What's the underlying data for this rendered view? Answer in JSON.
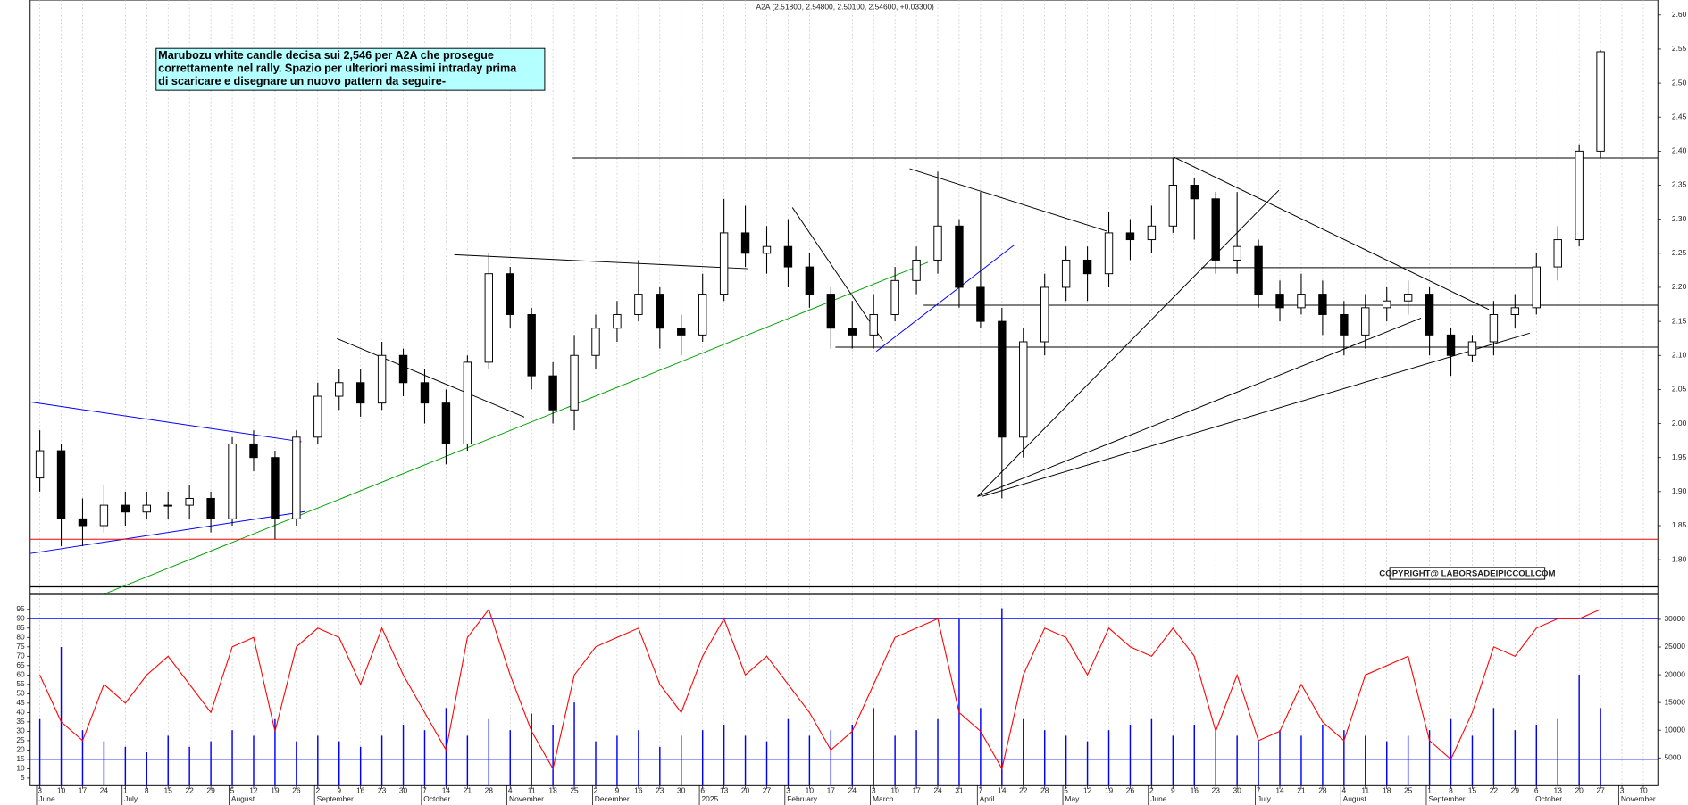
{
  "chart_data": {
    "type": "candlestick",
    "title": "A2A (2.51800, 2.54800, 2.50100, 2.54600, +0.03300)",
    "annotation": [
      "Marubozu white candle decisa sui 2,546 per A2A che prosegue",
      "correttamente nel rally. Spazio per ulteriori massimi intraday prima",
      "di scaricare e disegnare un nuovo pattern da seguire-"
    ],
    "copyright": "COPYRIGHT@ LABORSADEIPICCOLI.COM",
    "categories": [
      "3",
      "10",
      "17",
      "24",
      "1",
      "8",
      "15",
      "22",
      "29",
      "5",
      "12",
      "19",
      "26",
      "2",
      "9",
      "16",
      "23",
      "30",
      "7",
      "14",
      "21",
      "28",
      "4",
      "11",
      "18",
      "25",
      "2",
      "9",
      "16",
      "23",
      "30",
      "6",
      "13",
      "20",
      "27",
      "3",
      "10",
      "17",
      "24",
      "3",
      "10",
      "17",
      "24",
      "31",
      "7",
      "14",
      "22",
      "28",
      "5",
      "12",
      "19",
      "26",
      "2",
      "9",
      "16",
      "23",
      "30",
      "7",
      "14",
      "21",
      "28",
      "4",
      "11",
      "18",
      "25",
      "1",
      "8",
      "15",
      "22",
      "29",
      "6",
      "13",
      "20",
      "27",
      "3",
      "10"
    ],
    "months": [
      "June",
      "July",
      "August",
      "September",
      "October",
      "November",
      "December",
      "2025",
      "February",
      "March",
      "April",
      "May",
      "June",
      "July",
      "August",
      "September",
      "October",
      "November"
    ],
    "open": [
      1.92,
      1.96,
      1.86,
      1.85,
      1.88,
      1.87,
      1.88,
      1.88,
      1.89,
      1.86,
      1.97,
      1.95,
      1.86,
      1.98,
      2.04,
      2.06,
      2.03,
      2.1,
      2.06,
      2.03,
      1.97,
      2.09,
      2.22,
      2.16,
      2.07,
      2.02,
      2.1,
      2.14,
      2.16,
      2.19,
      2.14,
      2.13,
      2.19,
      2.28,
      2.25,
      2.26,
      2.23,
      2.19,
      2.14,
      2.13,
      2.16,
      2.21,
      2.24,
      2.29,
      2.2,
      2.15,
      1.98,
      2.12,
      2.2,
      2.24,
      2.22,
      2.28,
      2.27,
      2.29,
      2.35,
      2.33,
      2.24,
      2.26,
      2.19,
      2.17,
      2.19,
      2.16,
      2.13,
      2.17,
      2.18,
      2.19,
      2.13,
      2.1,
      2.12,
      2.16,
      2.17,
      2.23,
      2.27,
      2.4,
      null,
      null
    ],
    "high": [
      1.99,
      1.97,
      1.89,
      1.91,
      1.9,
      1.9,
      1.9,
      1.91,
      1.9,
      1.98,
      1.99,
      1.96,
      1.99,
      2.06,
      2.08,
      2.08,
      2.12,
      2.11,
      2.08,
      2.05,
      2.1,
      2.25,
      2.23,
      2.17,
      2.09,
      2.13,
      2.16,
      2.18,
      2.24,
      2.2,
      2.16,
      2.22,
      2.33,
      2.32,
      2.29,
      2.3,
      2.25,
      2.2,
      2.18,
      2.19,
      2.23,
      2.26,
      2.37,
      2.3,
      2.34,
      2.17,
      2.14,
      2.22,
      2.26,
      2.26,
      2.31,
      2.3,
      2.32,
      2.39,
      2.36,
      2.34,
      2.34,
      2.27,
      2.21,
      2.22,
      2.21,
      2.18,
      2.19,
      2.2,
      2.21,
      2.2,
      2.14,
      2.13,
      2.18,
      2.19,
      2.25,
      2.29,
      2.41,
      2.548,
      null,
      null
    ],
    "low": [
      1.9,
      1.82,
      1.82,
      1.84,
      1.85,
      1.86,
      1.86,
      1.86,
      1.84,
      1.85,
      1.93,
      1.83,
      1.85,
      1.97,
      2.02,
      2.01,
      2.02,
      2.04,
      2.0,
      1.94,
      1.96,
      2.08,
      2.14,
      2.05,
      2.0,
      1.99,
      2.08,
      2.12,
      2.15,
      2.11,
      2.1,
      2.12,
      2.18,
      2.23,
      2.22,
      2.2,
      2.17,
      2.11,
      2.11,
      2.11,
      2.15,
      2.19,
      2.22,
      2.17,
      2.14,
      1.89,
      1.95,
      2.1,
      2.18,
      2.18,
      2.2,
      2.24,
      2.25,
      2.28,
      2.27,
      2.22,
      2.22,
      2.17,
      2.15,
      2.16,
      2.13,
      2.1,
      2.11,
      2.15,
      2.16,
      2.1,
      2.07,
      2.09,
      2.1,
      2.14,
      2.16,
      2.21,
      2.26,
      2.39,
      null,
      null
    ],
    "close": [
      1.96,
      1.86,
      1.85,
      1.88,
      1.87,
      1.88,
      1.88,
      1.89,
      1.86,
      1.97,
      1.95,
      1.86,
      1.98,
      2.04,
      2.06,
      2.03,
      2.1,
      2.06,
      2.03,
      1.97,
      2.09,
      2.22,
      2.16,
      2.07,
      2.02,
      2.1,
      2.14,
      2.16,
      2.19,
      2.14,
      2.13,
      2.19,
      2.28,
      2.25,
      2.26,
      2.23,
      2.19,
      2.14,
      2.13,
      2.16,
      2.21,
      2.24,
      2.29,
      2.2,
      2.15,
      1.98,
      2.12,
      2.2,
      2.24,
      2.22,
      2.28,
      2.27,
      2.29,
      2.35,
      2.33,
      2.24,
      2.26,
      2.19,
      2.17,
      2.19,
      2.16,
      2.13,
      2.17,
      2.18,
      2.19,
      2.13,
      2.1,
      2.12,
      2.16,
      2.17,
      2.23,
      2.27,
      2.4,
      2.546,
      null,
      null
    ],
    "ylim": [
      1.757,
      2.622
    ],
    "yticks": [
      {
        "value": 1.8,
        "label": "1.80"
      },
      {
        "value": 1.85,
        "label": "1.85"
      },
      {
        "value": 1.9,
        "label": "1.90"
      },
      {
        "value": 1.95,
        "label": "1.95"
      },
      {
        "value": 2.0,
        "label": "2.00"
      },
      {
        "value": 2.05,
        "label": "2.05"
      },
      {
        "value": 2.1,
        "label": "2.10"
      },
      {
        "value": 2.15,
        "label": "2.15"
      },
      {
        "value": 2.2,
        "label": "2.20"
      },
      {
        "value": 2.25,
        "label": "2.25"
      },
      {
        "value": 2.3,
        "label": "2.30"
      },
      {
        "value": 2.35,
        "label": "2.35"
      },
      {
        "value": 2.4,
        "label": "2.40"
      },
      {
        "value": 2.45,
        "label": "2.45"
      },
      {
        "value": 2.5,
        "label": "2.50"
      },
      {
        "value": 2.55,
        "label": "2.55"
      },
      {
        "value": 2.6,
        "label": "2.60"
      }
    ],
    "oscillator": {
      "color": "#ff0000",
      "level_color": "#0000ff",
      "values": [
        60,
        35,
        25,
        55,
        45,
        60,
        70,
        55,
        40,
        75,
        80,
        30,
        75,
        85,
        80,
        55,
        85,
        60,
        40,
        20,
        80,
        95,
        60,
        30,
        10,
        60,
        75,
        80,
        85,
        55,
        40,
        70,
        90,
        60,
        70,
        55,
        40,
        20,
        30,
        55,
        80,
        85,
        90,
        40,
        30,
        10,
        60,
        85,
        80,
        60,
        85,
        75,
        70,
        85,
        70,
        30,
        60,
        25,
        30,
        55,
        35,
        25,
        60,
        65,
        70,
        25,
        15,
        40,
        75,
        70,
        85,
        90,
        90,
        95,
        null,
        null
      ],
      "ylim": [
        1,
        103
      ],
      "yticks": [
        5,
        10,
        15,
        20,
        25,
        30,
        35,
        40,
        45,
        50,
        55,
        60,
        65,
        70,
        75,
        80,
        85,
        90,
        95
      ],
      "levels": [
        90,
        15
      ]
    },
    "volume": {
      "color": "#0000ff",
      "values": [
        12000,
        25000,
        10000,
        8000,
        7000,
        6000,
        9000,
        7000,
        8000,
        10000,
        9000,
        12000,
        8000,
        9000,
        8000,
        7000,
        9000,
        11000,
        10000,
        14000,
        9000,
        12000,
        10000,
        13000,
        11000,
        15000,
        8000,
        9000,
        10000,
        7000,
        9000,
        10000,
        11000,
        9000,
        8000,
        12000,
        9000,
        10000,
        11000,
        14000,
        9000,
        10000,
        12000,
        30000,
        14000,
        32000,
        12000,
        10000,
        9000,
        8000,
        10000,
        11000,
        12000,
        9000,
        11000,
        10000,
        9000,
        8000,
        10000,
        9000,
        11000,
        10000,
        9000,
        8000,
        9000,
        10000,
        12000,
        9000,
        14000,
        10000,
        11000,
        12000,
        20000,
        14000,
        null,
        null
      ],
      "y2lim": [
        0,
        34500
      ],
      "y2ticks": [
        5000,
        10000,
        15000,
        20000,
        25000,
        30000
      ]
    },
    "support_color": "#ff0000",
    "support": 1.83
  }
}
